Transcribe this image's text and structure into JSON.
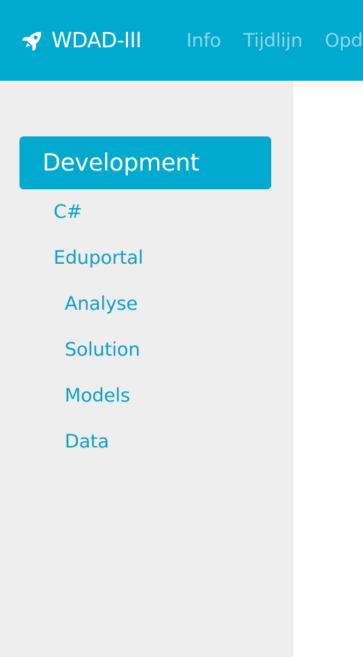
{
  "navbar": {
    "brand": {
      "icon": "rocket-icon",
      "label": "WDAD-III"
    },
    "links": [
      "Info",
      "Tijdlijn",
      "Opd"
    ],
    "colors": {
      "background": "#00a9ce",
      "brand_text": "#ffffff",
      "link_text": "#8fd6ec"
    }
  },
  "sidebar": {
    "section_title": "Development",
    "items": [
      {
        "label": "C#",
        "level": 1
      },
      {
        "label": "Eduportal",
        "level": 1
      },
      {
        "label": "Analyse",
        "level": 2
      },
      {
        "label": "Solution",
        "level": 2
      },
      {
        "label": "Models",
        "level": 2
      },
      {
        "label": "Data",
        "level": 2
      }
    ],
    "colors": {
      "background": "#eeeeee",
      "header_background": "#00a9ce",
      "link_text": "#11a0c6"
    }
  }
}
